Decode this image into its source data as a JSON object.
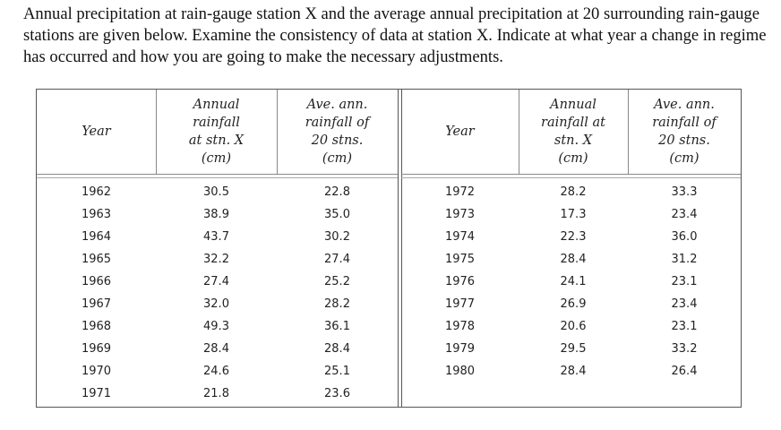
{
  "question": "Annual precipitation at rain-gauge station X and the average annual precipitation at 20 surrounding rain-gauge stations are given below. Examine the consistency of data at station X. Indicate at what year a change in regime has occurred and how you are going to make the necessary adjustments.",
  "table": {
    "left_headers": [
      "Year",
      "Annual\nrainfall\nat stn. X\n(cm)",
      "Ave. ann.\nrainfall of\n20 stns.\n(cm)"
    ],
    "right_headers": [
      "Year",
      "Annual\nrainfall at\nstn. X\n(cm)",
      "Ave. ann.\nrainfall of\n20 stns.\n(cm)"
    ],
    "left_rows": [
      [
        "1962",
        "30.5",
        "22.8"
      ],
      [
        "1963",
        "38.9",
        "35.0"
      ],
      [
        "1964",
        "43.7",
        "30.2"
      ],
      [
        "1965",
        "32.2",
        "27.4"
      ],
      [
        "1966",
        "27.4",
        "25.2"
      ],
      [
        "1967",
        "32.0",
        "28.2"
      ],
      [
        "1968",
        "49.3",
        "36.1"
      ],
      [
        "1969",
        "28.4",
        "28.4"
      ],
      [
        "1970",
        "24.6",
        "25.1"
      ],
      [
        "1971",
        "21.8",
        "23.6"
      ]
    ],
    "right_rows": [
      [
        "1972",
        "28.2",
        "33.3"
      ],
      [
        "1973",
        "17.3",
        "23.4"
      ],
      [
        "1974",
        "22.3",
        "36.0"
      ],
      [
        "1975",
        "28.4",
        "31.2"
      ],
      [
        "1976",
        "24.1",
        "23.1"
      ],
      [
        "1977",
        "26.9",
        "23.4"
      ],
      [
        "1978",
        "20.6",
        "23.1"
      ],
      [
        "1979",
        "29.5",
        "33.2"
      ],
      [
        "1980",
        "28.4",
        "26.4"
      ]
    ]
  }
}
